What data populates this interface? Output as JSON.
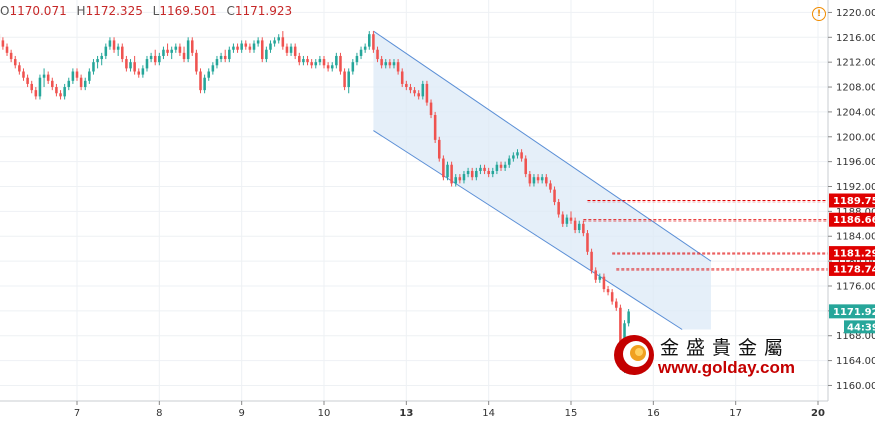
{
  "header": {
    "ohlc": [
      {
        "label": "O",
        "value": "1170.071"
      },
      {
        "label": "H",
        "value": "1172.325"
      },
      {
        "label": "L",
        "value": "1169.501"
      },
      {
        "label": "C",
        "value": "1171.923"
      }
    ],
    "warning_icon": "warning-circle-icon",
    "warning_glyph": "!"
  },
  "chart_data": {
    "type": "candlestick",
    "title": "",
    "xlabel": "",
    "ylabel": "",
    "ylim": [
      1157.5,
      1222
    ],
    "y_ticks": [
      "1160.000",
      "1164.000",
      "1168.000",
      "1172.000",
      "1176.000",
      "1180.000",
      "1184.000",
      "1188.000",
      "1192.000",
      "1196.000",
      "1200.000",
      "1204.000",
      "1208.000",
      "1212.000",
      "1216.000",
      "1220.000"
    ],
    "x_ticks": [
      {
        "label": "7",
        "day": 7
      },
      {
        "label": "8",
        "day": 8
      },
      {
        "label": "9",
        "day": 9
      },
      {
        "label": "10",
        "day": 10
      },
      {
        "label": "13",
        "day": 11,
        "bold": true
      },
      {
        "label": "14",
        "day": 12
      },
      {
        "label": "15",
        "day": 13
      },
      {
        "label": "16",
        "day": 14
      },
      {
        "label": "17",
        "day": 15
      },
      {
        "label": "20",
        "day": 16,
        "bold": true
      }
    ],
    "channel": {
      "upper": [
        [
          10.6,
          1217
        ],
        [
          14.7,
          1180
        ]
      ],
      "lower": [
        [
          10.6,
          1201
        ],
        [
          14.35,
          1169
        ]
      ],
      "fill_color": "#dce9f7",
      "line_color": "#5b8fd6"
    },
    "horizontal_levels": [
      {
        "value": "1189.750",
        "y": 1189.75,
        "start_day": 13.2
      },
      {
        "value": "1186.662",
        "y": 1186.66,
        "start_day": 13.15
      },
      {
        "value": "1181.292",
        "y": 1181.29,
        "start_day": 13.5
      },
      {
        "value": "1178.742",
        "y": 1178.74,
        "start_day": 13.55
      }
    ],
    "last_price": {
      "value": "1171.923",
      "y": 1171.92,
      "color": "#26a69a"
    },
    "countdown": {
      "value": "44:39",
      "color": "#26a69a"
    },
    "colors": {
      "up": "#26a69a",
      "down": "#ef5350",
      "level": "#e00000"
    },
    "candles": [
      [
        6.0,
        1217.5,
        1218.0,
        1216.0,
        1216.5
      ],
      [
        6.05,
        1216.5,
        1217.0,
        1215.0,
        1215.5
      ],
      [
        6.1,
        1215.5,
        1216.0,
        1214.0,
        1214.5
      ],
      [
        6.15,
        1214.5,
        1215.0,
        1213.0,
        1213.5
      ],
      [
        6.2,
        1213.5,
        1214.0,
        1212.0,
        1212.5
      ],
      [
        6.25,
        1212.5,
        1213.0,
        1211.0,
        1211.5
      ],
      [
        6.3,
        1211.5,
        1212.0,
        1210.0,
        1210.5
      ],
      [
        6.35,
        1210.5,
        1211.0,
        1209.0,
        1209.5
      ],
      [
        6.4,
        1209.5,
        1210.0,
        1208.0,
        1208.5
      ],
      [
        6.45,
        1208.5,
        1209.0,
        1207.0,
        1207.5
      ],
      [
        6.5,
        1207.5,
        1208.0,
        1206.0,
        1206.5
      ],
      [
        6.55,
        1206.5,
        1210.0,
        1206.0,
        1209.5
      ],
      [
        6.6,
        1209.5,
        1211.0,
        1208.0,
        1210.0
      ],
      [
        6.65,
        1210.0,
        1210.5,
        1208.5,
        1209.0
      ],
      [
        6.7,
        1209.0,
        1209.5,
        1207.5,
        1208.0
      ],
      [
        6.75,
        1208.0,
        1208.5,
        1206.5,
        1207.0
      ],
      [
        6.8,
        1207.0,
        1207.5,
        1206.0,
        1206.5
      ],
      [
        6.85,
        1206.5,
        1208.5,
        1206.0,
        1208.0
      ],
      [
        6.9,
        1208.0,
        1209.5,
        1207.5,
        1209.0
      ],
      [
        6.95,
        1209.0,
        1211.0,
        1208.5,
        1210.5
      ],
      [
        7.0,
        1210.5,
        1211.0,
        1209.0,
        1209.5
      ],
      [
        7.05,
        1209.5,
        1210.0,
        1207.5,
        1208.0
      ],
      [
        7.1,
        1208.0,
        1209.5,
        1207.5,
        1209.0
      ],
      [
        7.15,
        1209.0,
        1211.0,
        1208.5,
        1210.5
      ],
      [
        7.2,
        1210.5,
        1212.5,
        1210.0,
        1212.0
      ],
      [
        7.25,
        1212.0,
        1213.0,
        1211.0,
        1212.5
      ],
      [
        7.3,
        1212.5,
        1213.5,
        1211.5,
        1213.0
      ],
      [
        7.35,
        1213.0,
        1215.0,
        1212.5,
        1214.5
      ],
      [
        7.4,
        1214.5,
        1216.0,
        1214.0,
        1215.5
      ],
      [
        7.45,
        1215.5,
        1216.0,
        1213.5,
        1214.0
      ],
      [
        7.5,
        1214.0,
        1215.0,
        1213.0,
        1214.5
      ],
      [
        7.55,
        1214.5,
        1215.0,
        1212.0,
        1212.5
      ],
      [
        7.6,
        1212.5,
        1213.0,
        1210.5,
        1211.0
      ],
      [
        7.65,
        1211.0,
        1212.5,
        1210.5,
        1212.0
      ],
      [
        7.7,
        1212.0,
        1213.0,
        1210.0,
        1210.5
      ],
      [
        7.75,
        1210.5,
        1211.0,
        1209.5,
        1210.0
      ],
      [
        7.8,
        1210.0,
        1211.5,
        1209.5,
        1211.0
      ],
      [
        7.85,
        1211.0,
        1213.0,
        1210.5,
        1212.5
      ],
      [
        7.9,
        1212.5,
        1213.5,
        1212.0,
        1213.0
      ],
      [
        7.95,
        1213.0,
        1214.0,
        1211.5,
        1212.0
      ],
      [
        8.0,
        1212.0,
        1213.5,
        1211.5,
        1213.0
      ],
      [
        8.05,
        1213.0,
        1214.5,
        1212.5,
        1214.0
      ],
      [
        8.1,
        1214.0,
        1215.0,
        1213.0,
        1213.5
      ],
      [
        8.15,
        1213.5,
        1214.5,
        1212.5,
        1214.0
      ],
      [
        8.2,
        1214.0,
        1215.0,
        1213.5,
        1214.5
      ],
      [
        8.25,
        1214.5,
        1215.0,
        1213.0,
        1213.5
      ],
      [
        8.3,
        1213.5,
        1214.5,
        1212.0,
        1212.5
      ],
      [
        8.35,
        1212.5,
        1216.0,
        1212.0,
        1215.5
      ],
      [
        8.4,
        1215.5,
        1216.0,
        1213.0,
        1213.5
      ],
      [
        8.45,
        1213.5,
        1214.0,
        1210.0,
        1210.5
      ],
      [
        8.5,
        1210.5,
        1211.0,
        1207.0,
        1207.5
      ],
      [
        8.55,
        1207.5,
        1210.0,
        1207.0,
        1209.5
      ],
      [
        8.6,
        1209.5,
        1211.0,
        1209.0,
        1210.5
      ],
      [
        8.65,
        1210.5,
        1212.0,
        1210.0,
        1211.5
      ],
      [
        8.7,
        1211.5,
        1213.0,
        1211.0,
        1212.5
      ],
      [
        8.75,
        1212.5,
        1213.5,
        1212.0,
        1213.0
      ],
      [
        8.8,
        1213.0,
        1214.0,
        1212.0,
        1212.5
      ],
      [
        8.85,
        1212.5,
        1214.5,
        1212.0,
        1214.0
      ],
      [
        8.9,
        1214.0,
        1215.0,
        1213.5,
        1214.5
      ],
      [
        8.95,
        1214.5,
        1215.0,
        1213.5,
        1214.0
      ],
      [
        9.0,
        1214.0,
        1215.5,
        1213.5,
        1215.0
      ],
      [
        9.05,
        1215.0,
        1215.5,
        1214.0,
        1214.5
      ],
      [
        9.1,
        1214.5,
        1215.0,
        1213.5,
        1214.0
      ],
      [
        9.15,
        1214.0,
        1215.5,
        1213.5,
        1215.0
      ],
      [
        9.2,
        1215.0,
        1216.0,
        1214.5,
        1215.5
      ],
      [
        9.25,
        1215.5,
        1216.0,
        1212.0,
        1212.5
      ],
      [
        9.3,
        1212.5,
        1214.5,
        1212.0,
        1214.0
      ],
      [
        9.35,
        1214.0,
        1215.5,
        1213.5,
        1215.0
      ],
      [
        9.4,
        1215.0,
        1216.0,
        1214.5,
        1215.5
      ],
      [
        9.45,
        1215.5,
        1216.5,
        1215.0,
        1216.0
      ],
      [
        9.5,
        1216.0,
        1217.0,
        1214.0,
        1214.5
      ],
      [
        9.55,
        1214.5,
        1215.0,
        1213.0,
        1213.5
      ],
      [
        9.6,
        1213.5,
        1215.0,
        1213.0,
        1214.5
      ],
      [
        9.65,
        1214.5,
        1215.0,
        1212.5,
        1213.0
      ],
      [
        9.7,
        1213.0,
        1213.5,
        1211.5,
        1212.0
      ],
      [
        9.75,
        1212.0,
        1213.0,
        1211.5,
        1212.5
      ],
      [
        9.8,
        1212.5,
        1213.0,
        1211.5,
        1212.0
      ],
      [
        9.85,
        1212.0,
        1212.5,
        1211.0,
        1211.5
      ],
      [
        9.9,
        1211.5,
        1212.5,
        1211.0,
        1212.0
      ],
      [
        9.95,
        1212.0,
        1213.0,
        1211.5,
        1212.5
      ],
      [
        10.0,
        1212.5,
        1213.0,
        1211.0,
        1211.5
      ],
      [
        10.05,
        1211.5,
        1212.0,
        1210.5,
        1211.0
      ],
      [
        10.1,
        1211.0,
        1212.0,
        1210.5,
        1211.5
      ],
      [
        10.15,
        1211.5,
        1213.5,
        1211.0,
        1213.0
      ],
      [
        10.2,
        1213.0,
        1213.5,
        1210.0,
        1210.5
      ],
      [
        10.25,
        1210.5,
        1211.0,
        1207.5,
        1208.0
      ],
      [
        10.3,
        1208.0,
        1211.0,
        1207.0,
        1210.5
      ],
      [
        10.35,
        1210.5,
        1212.5,
        1210.0,
        1212.0
      ],
      [
        10.4,
        1212.0,
        1213.5,
        1211.5,
        1213.0
      ],
      [
        10.45,
        1213.0,
        1214.5,
        1212.5,
        1214.0
      ],
      [
        10.5,
        1214.0,
        1215.0,
        1213.5,
        1214.5
      ],
      [
        10.55,
        1214.5,
        1217.0,
        1214.0,
        1216.5
      ],
      [
        10.6,
        1216.5,
        1217.0,
        1213.5,
        1214.0
      ],
      [
        10.65,
        1214.0,
        1214.5,
        1212.0,
        1212.5
      ],
      [
        10.7,
        1212.5,
        1213.0,
        1211.0,
        1211.5
      ],
      [
        10.75,
        1211.5,
        1212.5,
        1211.0,
        1212.0
      ],
      [
        10.8,
        1212.0,
        1212.5,
        1211.0,
        1211.5
      ],
      [
        10.85,
        1211.5,
        1212.5,
        1211.0,
        1212.0
      ],
      [
        10.9,
        1212.0,
        1212.5,
        1210.0,
        1210.5
      ],
      [
        10.95,
        1210.5,
        1211.0,
        1208.0,
        1208.5
      ],
      [
        11.0,
        1208.5,
        1209.0,
        1207.5,
        1208.0
      ],
      [
        11.05,
        1208.0,
        1208.5,
        1207.0,
        1207.5
      ],
      [
        11.1,
        1207.5,
        1208.0,
        1206.5,
        1207.0
      ],
      [
        11.15,
        1207.0,
        1207.5,
        1206.0,
        1206.5
      ],
      [
        11.2,
        1206.5,
        1209.0,
        1206.0,
        1208.5
      ],
      [
        11.25,
        1208.5,
        1209.0,
        1205.0,
        1205.5
      ],
      [
        11.3,
        1205.5,
        1206.0,
        1203.0,
        1203.5
      ],
      [
        11.35,
        1203.5,
        1204.0,
        1199.0,
        1199.5
      ],
      [
        11.4,
        1199.5,
        1200.0,
        1196.0,
        1196.5
      ],
      [
        11.45,
        1196.5,
        1197.0,
        1193.0,
        1193.5
      ],
      [
        11.5,
        1193.5,
        1196.0,
        1193.0,
        1195.5
      ],
      [
        11.55,
        1195.5,
        1196.0,
        1192.0,
        1192.5
      ],
      [
        11.6,
        1192.5,
        1194.0,
        1192.0,
        1193.5
      ],
      [
        11.65,
        1193.5,
        1194.0,
        1192.5,
        1193.0
      ],
      [
        11.7,
        1193.0,
        1194.5,
        1192.5,
        1194.0
      ],
      [
        11.75,
        1194.0,
        1195.0,
        1193.5,
        1194.5
      ],
      [
        11.8,
        1194.5,
        1195.0,
        1193.0,
        1193.5
      ],
      [
        11.85,
        1193.5,
        1195.0,
        1193.0,
        1194.5
      ],
      [
        11.9,
        1194.5,
        1195.5,
        1194.0,
        1195.0
      ],
      [
        11.95,
        1195.0,
        1195.5,
        1194.0,
        1194.5
      ],
      [
        12.0,
        1194.5,
        1195.0,
        1193.5,
        1194.0
      ],
      [
        12.05,
        1194.0,
        1195.0,
        1193.5,
        1194.5
      ],
      [
        12.1,
        1194.5,
        1196.0,
        1194.0,
        1195.5
      ],
      [
        12.15,
        1195.5,
        1196.0,
        1194.5,
        1195.0
      ],
      [
        12.2,
        1195.0,
        1196.0,
        1194.5,
        1195.5
      ],
      [
        12.25,
        1195.5,
        1197.0,
        1195.0,
        1196.5
      ],
      [
        12.3,
        1196.5,
        1197.5,
        1196.0,
        1197.0
      ],
      [
        12.35,
        1197.0,
        1198.0,
        1196.5,
        1197.5
      ],
      [
        12.4,
        1197.5,
        1198.0,
        1196.0,
        1196.5
      ],
      [
        12.45,
        1196.5,
        1197.0,
        1193.5,
        1194.0
      ],
      [
        12.5,
        1194.0,
        1194.5,
        1192.0,
        1192.5
      ],
      [
        12.55,
        1192.5,
        1194.0,
        1192.0,
        1193.5
      ],
      [
        12.6,
        1193.5,
        1194.0,
        1192.5,
        1193.0
      ],
      [
        12.65,
        1193.0,
        1194.0,
        1192.5,
        1193.5
      ],
      [
        12.7,
        1193.5,
        1194.0,
        1192.0,
        1192.5
      ],
      [
        12.75,
        1192.5,
        1193.0,
        1191.0,
        1191.5
      ],
      [
        12.8,
        1191.5,
        1192.0,
        1189.0,
        1189.5
      ],
      [
        12.85,
        1189.5,
        1190.0,
        1187.0,
        1187.5
      ],
      [
        12.9,
        1187.5,
        1188.0,
        1185.5,
        1186.0
      ],
      [
        12.95,
        1186.0,
        1187.5,
        1185.5,
        1187.0
      ],
      [
        13.0,
        1187.0,
        1188.0,
        1186.0,
        1186.5
      ],
      [
        13.05,
        1186.5,
        1187.0,
        1184.5,
        1185.0
      ],
      [
        13.1,
        1185.0,
        1186.5,
        1184.5,
        1186.0
      ],
      [
        13.15,
        1186.0,
        1186.5,
        1184.0,
        1184.5
      ],
      [
        13.2,
        1184.5,
        1185.0,
        1181.0,
        1181.5
      ],
      [
        13.25,
        1181.5,
        1182.0,
        1178.0,
        1178.5
      ],
      [
        13.3,
        1178.5,
        1179.0,
        1176.5,
        1177.0
      ],
      [
        13.35,
        1177.0,
        1178.0,
        1176.5,
        1177.5
      ],
      [
        13.4,
        1177.5,
        1178.0,
        1175.0,
        1175.5
      ],
      [
        13.45,
        1175.5,
        1176.0,
        1174.5,
        1175.0
      ],
      [
        13.5,
        1175.0,
        1175.5,
        1173.0,
        1173.5
      ],
      [
        13.55,
        1173.5,
        1174.0,
        1172.0,
        1172.5
      ],
      [
        13.6,
        1172.5,
        1173.0,
        1162.5,
        1163.0
      ],
      [
        13.65,
        1163.0,
        1170.5,
        1162.0,
        1170.0
      ],
      [
        13.7,
        1170.0,
        1172.3,
        1169.5,
        1171.9
      ]
    ]
  },
  "logo": {
    "chinese": "金盛貴金屬",
    "url": "www.golday.com"
  }
}
